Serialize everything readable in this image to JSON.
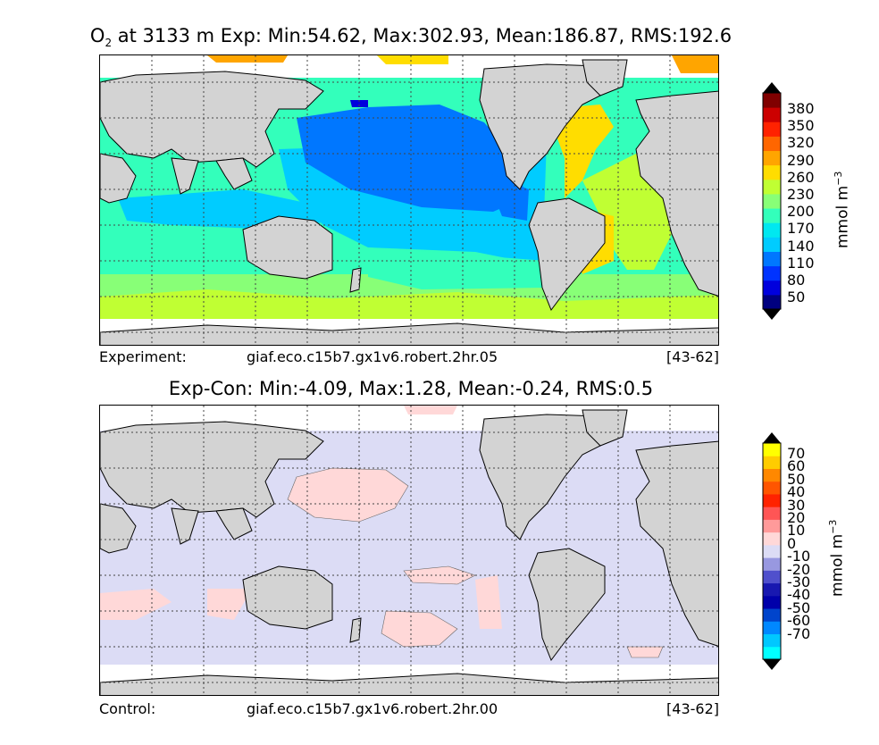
{
  "panel1": {
    "title_prefix": "O",
    "title_sub": "2",
    "title_rest": " at 3133 m Exp: Min:54.62, Max:302.93, Mean:186.87, RMS:192.6",
    "footer_label": "Experiment:",
    "footer_case": "giaf.eco.c15b7.gx1v6.robert.2hr.05",
    "footer_years": "[43-62]",
    "colorbar": {
      "unit": "mmol m",
      "unit_sup": "−3",
      "ticks": [
        "380",
        "350",
        "320",
        "290",
        "260",
        "230",
        "200",
        "170",
        "140",
        "110",
        "80",
        "50"
      ],
      "colors": [
        "#000080",
        "#0000dd",
        "#0033ff",
        "#0077ff",
        "#00ccff",
        "#00e8f0",
        "#33ffbb",
        "#88ff77",
        "#c0ff33",
        "#ffdd00",
        "#ffa500",
        "#ff6600",
        "#ff2200",
        "#cc0000",
        "#800000"
      ],
      "over_color": "#000000",
      "under_color": "#000000"
    }
  },
  "panel2": {
    "title": "Exp-Con: Min:-4.09, Max:1.28, Mean:-0.24, RMS:0.5",
    "footer_label": "Control:",
    "footer_case": "giaf.eco.c15b7.gx1v6.robert.2hr.00",
    "footer_years": "[43-62]",
    "colorbar": {
      "unit": "mmol m",
      "unit_sup": "−3",
      "ticks": [
        "70",
        "60",
        "50",
        "40",
        "30",
        "20",
        "10",
        "0",
        "-10",
        "-20",
        "-30",
        "-40",
        "-50",
        "-60",
        "-70"
      ],
      "colors": [
        "#00ffff",
        "#00c8ff",
        "#0088ff",
        "#0044cc",
        "#0000aa",
        "#1818b0",
        "#5050cc",
        "#9898e0",
        "#dcdcf5",
        "#ffd8d8",
        "#ff9a9a",
        "#ff5555",
        "#ff2200",
        "#ff5500",
        "#ff8800",
        "#ffcc00",
        "#ffff00"
      ],
      "over_color": "#000000",
      "under_color": "#000000"
    }
  },
  "map_colors": {
    "land": "#d3d3d3",
    "coast": "#000000",
    "exp_ocean_default": "#33ffbb",
    "diff_ocean_default": "#dcdcf5"
  }
}
